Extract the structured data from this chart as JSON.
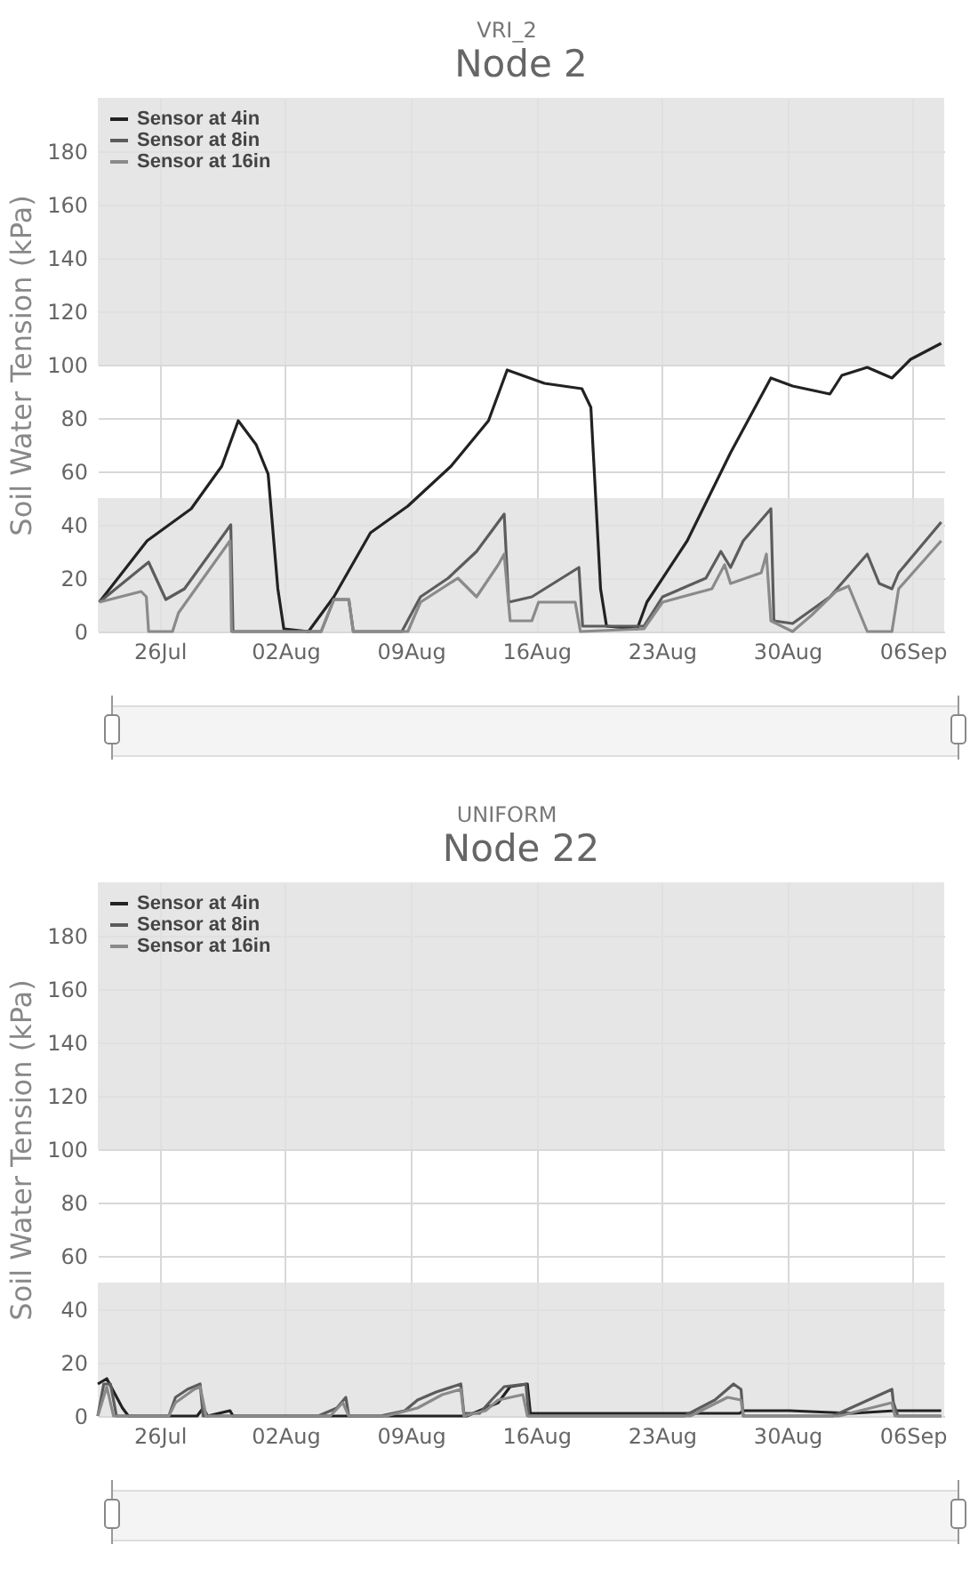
{
  "chart_data": [
    {
      "type": "line",
      "subtitle": "VRI_2",
      "title": "Node 2",
      "ylabel": "Soil Water Tension (kPa)",
      "xlim": [
        "--07-22T13:00",
        "--09-07T18:00"
      ],
      "ylim": [
        0,
        200
      ],
      "xticks": [
        {
          "value": "--07-26",
          "label": "26Jul"
        },
        {
          "value": "--08-02",
          "label": "02Aug"
        },
        {
          "value": "--08-09",
          "label": "09Aug"
        },
        {
          "value": "--08-16",
          "label": "16Aug"
        },
        {
          "value": "--08-23",
          "label": "23Aug"
        },
        {
          "value": "--08-30",
          "label": "30Aug"
        },
        {
          "value": "--09-06",
          "label": "06Sep"
        }
      ],
      "yticks": [
        0,
        20,
        40,
        60,
        80,
        100,
        120,
        140,
        160,
        180
      ],
      "grid": true,
      "legend": "top left",
      "bands": [
        {
          "axis": "y",
          "from": 0,
          "to": 50,
          "color": "#e2e2e2"
        },
        {
          "axis": "y",
          "from": 100,
          "to": 200,
          "color": "#e2e2e2"
        }
      ],
      "series": [
        {
          "name": "Sensor at 4in",
          "color": "#222222",
          "x": [
            "--07-22T15:00",
            "--07-25T07:00",
            "--07-27T18:00",
            "--07-29T11:00",
            "--07-30T09:00",
            "--07-31T09:00",
            "--08-01T01:00",
            "--08-01T14:00",
            "--08-01T22:00",
            "--08-03T07:00",
            "--08-04T17:00",
            "--08-06T18:00",
            "--08-08T20:00",
            "--08-11T06:00",
            "--08-13T08:00",
            "--08-14T09:00",
            "--08-16T11:00",
            "--08-18T13:00",
            "--08-19T01:00",
            "--08-19T14:00",
            "--08-19T22:00",
            "--08-21T15:00",
            "--08-22T04:00",
            "--08-24T10:00",
            "--08-26T20:00",
            "--08-29T02:00",
            "--08-30T07:00",
            "--09-01T09:00",
            "--09-02T01:00",
            "--09-03T11:00",
            "--09-04T20:00",
            "--09-05T21:00",
            "--09-07T14:00"
          ],
          "values": [
            11,
            34,
            46,
            62,
            79,
            70,
            59,
            16,
            1,
            0,
            13,
            37,
            47,
            62,
            79,
            98,
            93,
            91,
            84,
            16,
            2,
            1,
            11,
            34,
            67,
            95,
            92,
            89,
            96,
            99,
            95,
            102,
            108
          ]
        },
        {
          "name": "Sensor at 8in",
          "color": "#5c5c5c",
          "x": [
            "--07-22T15:00",
            "--07-25T09:00",
            "--07-26T08:00",
            "--07-27T09:00",
            "--07-29T23:00",
            "--07-30T02:00",
            "--08-04T00:00",
            "--08-04T17:00",
            "--08-05T13:00",
            "--08-05T19:00",
            "--08-08T12:00",
            "--08-09T13:00",
            "--08-11T02:00",
            "--08-12T16:00",
            "--08-14T05:00",
            "--08-14T11:00",
            "--08-15T18:00",
            "--08-18T09:00",
            "--08-18T14:00",
            "--08-22T00:00",
            "--08-23T01:00",
            "--08-25T11:00",
            "--08-26T07:00",
            "--08-26T20:00",
            "--08-27T13:00",
            "--08-29T02:00",
            "--08-29T06:00",
            "--08-30T07:00",
            "--09-01T09:00",
            "--09-03T11:00",
            "--09-04T03:00",
            "--09-04T20:00",
            "--09-05T05:00",
            "--09-07T14:00"
          ],
          "values": [
            11,
            26,
            12,
            16,
            40,
            0,
            0,
            12,
            12,
            0,
            0,
            13,
            20,
            30,
            44,
            11,
            13,
            24,
            2,
            2,
            13,
            20,
            30,
            24,
            34,
            46,
            4,
            3,
            13,
            29,
            18,
            16,
            22,
            41
          ]
        },
        {
          "name": "Sensor at 16in",
          "color": "#8a8a8a",
          "x": [
            "--07-22T15:00",
            "--07-24T23:00",
            "--07-25T06:00",
            "--07-25T09:00",
            "--07-26T17:00",
            "--07-27T01:00",
            "--07-29T22:00",
            "--07-30T00:00",
            "--08-04T00:00",
            "--08-04T17:00",
            "--08-05T13:00",
            "--08-05T19:00",
            "--08-08T20:00",
            "--08-09T13:00",
            "--08-11T15:00",
            "--08-12T16:00",
            "--08-13T21:00",
            "--08-14T05:00",
            "--08-14T13:00",
            "--08-15T18:00",
            "--08-16T03:00",
            "--08-18T04:00",
            "--08-18T11:00",
            "--08-22T00:00",
            "--08-23T01:00",
            "--08-25T19:00",
            "--08-26T12:00",
            "--08-26T20:00",
            "--08-28T13:00",
            "--08-28T20:00",
            "--08-29T02:00",
            "--08-30T07:00",
            "--08-31T08:00",
            "--09-01T17:00",
            "--09-02T10:00",
            "--09-03T11:00",
            "--09-04T20:00",
            "--09-05T05:00",
            "--09-07T14:00"
          ],
          "values": [
            11,
            15,
            13,
            0,
            0,
            7,
            34,
            0,
            0,
            12,
            12,
            0,
            0,
            11,
            20,
            13,
            25,
            29,
            4,
            4,
            11,
            11,
            0,
            1,
            11,
            16,
            25,
            18,
            22,
            29,
            4,
            0,
            6,
            15,
            17,
            0,
            0,
            16,
            34
          ]
        }
      ]
    },
    {
      "type": "line",
      "subtitle": "UNIFORM",
      "title": "Node 22",
      "ylabel": "Soil Water Tension (kPa)",
      "xlim": [
        "--07-22T13:00",
        "--09-07T18:00"
      ],
      "ylim": [
        0,
        200
      ],
      "xticks": [
        {
          "value": "--07-26",
          "label": "26Jul"
        },
        {
          "value": "--08-02",
          "label": "02Aug"
        },
        {
          "value": "--08-09",
          "label": "09Aug"
        },
        {
          "value": "--08-16",
          "label": "16Aug"
        },
        {
          "value": "--08-23",
          "label": "23Aug"
        },
        {
          "value": "--08-30",
          "label": "30Aug"
        },
        {
          "value": "--09-06",
          "label": "06Sep"
        }
      ],
      "yticks": [
        0,
        20,
        40,
        60,
        80,
        100,
        120,
        140,
        160,
        180
      ],
      "grid": true,
      "legend": "top left",
      "bands": [
        {
          "axis": "y",
          "from": 0,
          "to": 50,
          "color": "#e2e2e2"
        },
        {
          "axis": "y",
          "from": 100,
          "to": 200,
          "color": "#e2e2e2"
        }
      ],
      "series": [
        {
          "name": "Sensor at 4in",
          "color": "#222222",
          "x": [
            "--07-22T13:00",
            "--07-23T01:00",
            "--07-23T22:00",
            "--07-24T06:00",
            "--07-28T02:00",
            "--07-28T10:00",
            "--07-28T16:00",
            "--07-29T22:00",
            "--07-30T02:00",
            "--08-12T03:00",
            "--08-12T20:00",
            "--08-13T21:00",
            "--08-14T13:00",
            "--08-15T12:00",
            "--08-15T16:00",
            "--08-19T18:00",
            "--08-27T08:00",
            "--08-27T13:00",
            "--08-30T03:00",
            "--09-02T14:00",
            "--09-05T00:00",
            "--09-07T14:00"
          ],
          "values": [
            12,
            14,
            3,
            0,
            0,
            3,
            0,
            2,
            0,
            0,
            2,
            5,
            11,
            12,
            1,
            1,
            1,
            2,
            2,
            1,
            2,
            2
          ]
        },
        {
          "name": "Sensor at 8in",
          "color": "#5c5c5c",
          "x": [
            "--07-22T13:00",
            "--07-22T21:00",
            "--07-23T06:00",
            "--07-23T14:00",
            "--07-26T12:00",
            "--07-26T21:00",
            "--07-27T13:00",
            "--07-28T06:00",
            "--07-28T10:00",
            "--08-03T20:00",
            "--08-04T21:00",
            "--08-05T09:00",
            "--08-05T13:00",
            "--08-07T07:00",
            "--08-08T16:00",
            "--08-09T09:00",
            "--08-10T10:00",
            "--08-11T19:00",
            "--08-11T23:00",
            "--08-12T20:00",
            "--08-13T12:00",
            "--08-14T05:00",
            "--08-15T10:00",
            "--08-15T14:00",
            "--08-24T06:00",
            "--08-25T23:00",
            "--08-27T00:00",
            "--08-27T10:00",
            "--08-27T13:00",
            "--09-01T13:00",
            "--09-04T20:00",
            "--09-04T22:00",
            "--09-05T04:00",
            "--09-07T14:00"
          ],
          "values": [
            0,
            12,
            12,
            0,
            0,
            7,
            10,
            12,
            0,
            0,
            3,
            7,
            0,
            0,
            2,
            6,
            9,
            12,
            1,
            1,
            6,
            11,
            12,
            0,
            0,
            6,
            12,
            10,
            0,
            0,
            10,
            5,
            0,
            0
          ]
        },
        {
          "name": "Sensor at 16in",
          "color": "#8a8a8a",
          "x": [
            "--07-22T13:00",
            "--07-23T01:00",
            "--07-23T10:00",
            "--07-26T12:00",
            "--07-26T21:00",
            "--07-27T22:00",
            "--07-28T06:00",
            "--07-28T14:00",
            "--08-04T12:00",
            "--08-05T05:00",
            "--08-05T13:00",
            "--08-07T15:00",
            "--08-09T09:00",
            "--08-10T18:00",
            "--08-11T19:00",
            "--08-11T23:00",
            "--08-13T04:00",
            "--08-13T21:00",
            "--08-15T06:00",
            "--08-15T12:00",
            "--08-24T14:00",
            "--08-26T16:00",
            "--08-27T10:00",
            "--08-27T13:00",
            "--09-01T21:00",
            "--09-04T20:00",
            "--09-05T00:00",
            "--09-07T14:00"
          ],
          "values": [
            0,
            11,
            0,
            0,
            5,
            10,
            11,
            0,
            0,
            5,
            0,
            0,
            3,
            8,
            10,
            0,
            2,
            6,
            8,
            0,
            0,
            7,
            6,
            0,
            0,
            5,
            0,
            0
          ]
        }
      ]
    }
  ]
}
